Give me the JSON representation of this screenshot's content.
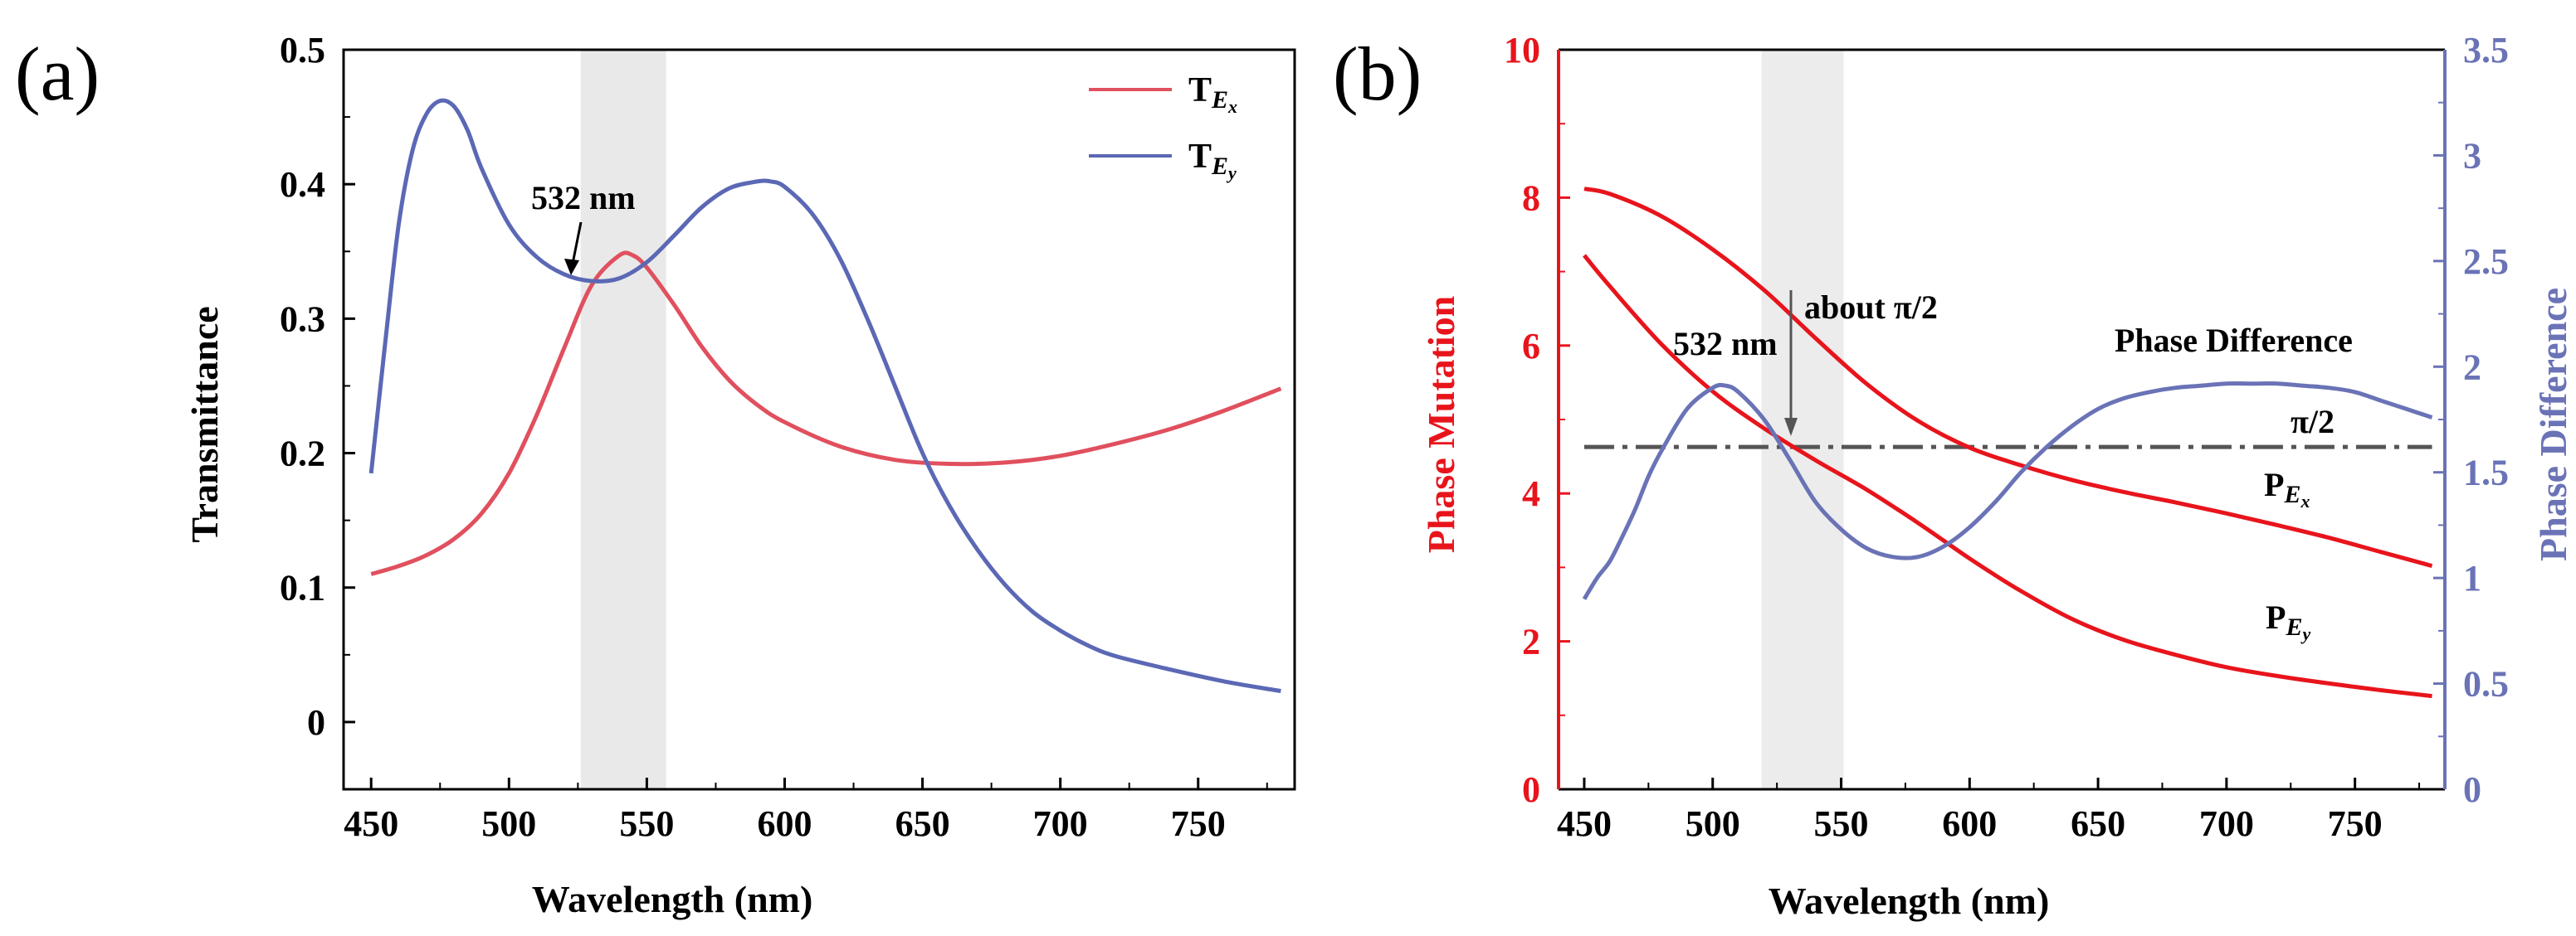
{
  "chart_data": [
    {
      "panel_label": "(a)",
      "type": "line",
      "xlabel": "Wavelength (nm)",
      "ylabel": "Transmittance",
      "xlim": [
        440,
        785
      ],
      "ylim": [
        -0.05,
        0.5
      ],
      "x_ticks": [
        "450",
        "500",
        "550",
        "600",
        "650",
        "700",
        "750"
      ],
      "y_ticks": [
        "0",
        "0.1",
        "0.2",
        "0.3",
        "0.4",
        "0.5"
      ],
      "shaded_band": [
        526,
        557
      ],
      "annotation": {
        "text": "532 nm",
        "x": 532,
        "y": 0.326
      },
      "series": [
        {
          "name": "T_Ex",
          "legend_main": "T",
          "legend_sub": "E",
          "legend_subsub": "x",
          "color": "#e0505e",
          "x": [
            450,
            460,
            470,
            480,
            490,
            500,
            510,
            520,
            530,
            540,
            545,
            550,
            560,
            570,
            580,
            590,
            600,
            620,
            640,
            660,
            680,
            700,
            720,
            740,
            760,
            780
          ],
          "y": [
            0.11,
            0.116,
            0.124,
            0.136,
            0.155,
            0.185,
            0.228,
            0.278,
            0.325,
            0.347,
            0.347,
            0.338,
            0.31,
            0.279,
            0.254,
            0.236,
            0.223,
            0.205,
            0.195,
            0.192,
            0.193,
            0.198,
            0.207,
            0.218,
            0.232,
            0.248
          ]
        },
        {
          "name": "T_Ey",
          "legend_main": "T",
          "legend_sub": "E",
          "legend_subsub": "y",
          "color": "#5b68b5",
          "x": [
            450,
            455,
            460,
            465,
            470,
            475,
            480,
            485,
            490,
            500,
            510,
            520,
            530,
            540,
            550,
            560,
            570,
            580,
            590,
            595,
            600,
            610,
            620,
            630,
            640,
            650,
            660,
            670,
            680,
            690,
            700,
            710,
            720,
            740,
            760,
            780
          ],
          "y": [
            0.185,
            0.28,
            0.37,
            0.425,
            0.452,
            0.462,
            0.458,
            0.44,
            0.412,
            0.37,
            0.346,
            0.333,
            0.328,
            0.33,
            0.342,
            0.362,
            0.383,
            0.397,
            0.402,
            0.402,
            0.398,
            0.378,
            0.345,
            0.3,
            0.25,
            0.2,
            0.16,
            0.128,
            0.102,
            0.082,
            0.068,
            0.057,
            0.049,
            0.039,
            0.03,
            0.023
          ]
        }
      ]
    },
    {
      "panel_label": "(b)",
      "type": "line",
      "xlabel": "Wavelength (nm)",
      "ylabel_left": "Phase Mutation",
      "ylabel_right": "Phase Difference",
      "xlim": [
        440,
        785
      ],
      "ylim_left": [
        0,
        10
      ],
      "ylim_right": [
        0,
        3.5
      ],
      "x_ticks": [
        "450",
        "500",
        "550",
        "600",
        "650",
        "700",
        "750"
      ],
      "y_ticks_left": [
        "0",
        "2",
        "4",
        "6",
        "8",
        "10"
      ],
      "y_ticks_right": [
        "0",
        "0.5",
        "1",
        "1.5",
        "2",
        "2.5",
        "3",
        "3.5"
      ],
      "left_color": "#e8141c",
      "right_color": "#6a73b6",
      "shaded_band": [
        519,
        551
      ],
      "reference_line": {
        "label": "π/2",
        "value_right_axis": 1.62
      },
      "annotations": [
        {
          "text": "532 nm",
          "x": 532
        },
        {
          "text": "about π/2",
          "x": 532
        },
        {
          "text": "Phase Difference"
        }
      ],
      "series": [
        {
          "name": "P_Ex",
          "legend_main": "P",
          "legend_sub": "E",
          "legend_subsub": "x",
          "axis": "left",
          "color": "#e8141c",
          "x": [
            450,
            460,
            480,
            500,
            520,
            540,
            560,
            580,
            600,
            620,
            640,
            660,
            680,
            700,
            720,
            740,
            760,
            780
          ],
          "y": [
            8.12,
            8.05,
            7.75,
            7.3,
            6.75,
            6.1,
            5.48,
            4.98,
            4.62,
            4.38,
            4.18,
            4.02,
            3.88,
            3.73,
            3.57,
            3.4,
            3.21,
            3.02
          ]
        },
        {
          "name": "P_Ey",
          "legend_main": "P",
          "legend_sub": "E",
          "legend_subsub": "y",
          "axis": "left",
          "color": "#e8141c",
          "x": [
            450,
            460,
            480,
            500,
            520,
            540,
            560,
            580,
            600,
            620,
            640,
            660,
            680,
            700,
            720,
            740,
            760,
            780
          ],
          "y": [
            7.22,
            6.8,
            6.02,
            5.38,
            4.88,
            4.45,
            4.05,
            3.6,
            3.12,
            2.68,
            2.3,
            2.02,
            1.82,
            1.65,
            1.53,
            1.43,
            1.34,
            1.26
          ]
        },
        {
          "name": "Phase Difference",
          "axis": "right",
          "color": "#6a73b6",
          "x": [
            450,
            455,
            460,
            465,
            470,
            475,
            480,
            490,
            500,
            505,
            510,
            520,
            530,
            540,
            550,
            560,
            570,
            580,
            590,
            600,
            610,
            620,
            630,
            640,
            650,
            660,
            670,
            680,
            690,
            700,
            710,
            720,
            730,
            740,
            750,
            760,
            770,
            780
          ],
          "y": [
            0.9,
            1.0,
            1.08,
            1.2,
            1.33,
            1.48,
            1.6,
            1.8,
            1.9,
            1.91,
            1.88,
            1.75,
            1.56,
            1.36,
            1.23,
            1.14,
            1.1,
            1.1,
            1.15,
            1.24,
            1.36,
            1.5,
            1.62,
            1.72,
            1.8,
            1.85,
            1.88,
            1.9,
            1.91,
            1.92,
            1.92,
            1.92,
            1.91,
            1.9,
            1.88,
            1.84,
            1.8,
            1.76
          ]
        }
      ]
    }
  ]
}
